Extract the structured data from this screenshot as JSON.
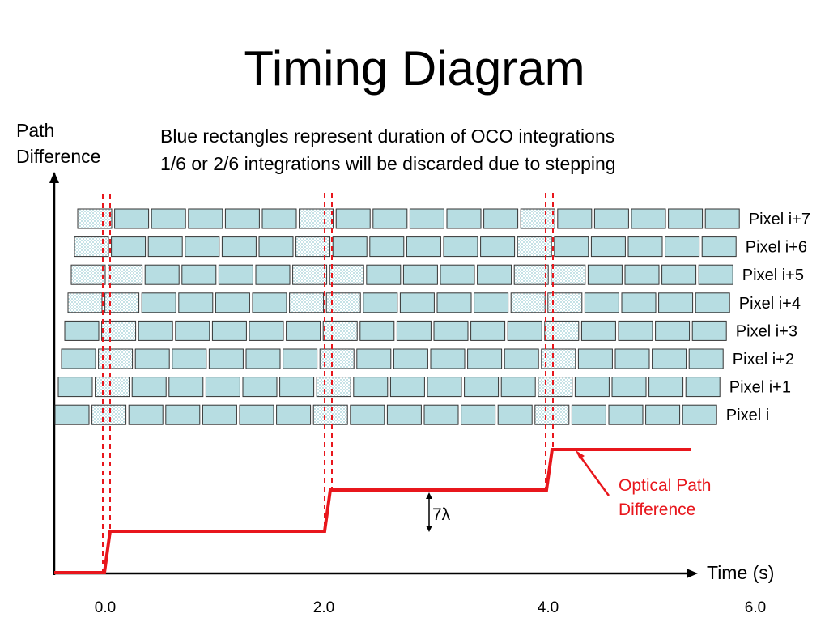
{
  "title": "Timing Diagram",
  "y_axis_label": [
    "Path",
    "Difference"
  ],
  "x_axis_label": "Time (s)",
  "notes": [
    "Blue rectangles represent duration of OCO integrations",
    "1/6 or 2/6 integrations will be discarded due to stepping"
  ],
  "x_ticks": [
    "0.0",
    "2.0",
    "4.0",
    "6.0"
  ],
  "step_height_label": "7λ",
  "opd_label": [
    "Optical Path",
    "Difference"
  ],
  "pixels": [
    {
      "label": "Pixel i+7"
    },
    {
      "label": "Pixel i+6"
    },
    {
      "label": "Pixel i+5"
    },
    {
      "label": "Pixel i+4"
    },
    {
      "label": "Pixel i+3"
    },
    {
      "label": "Pixel i+2"
    },
    {
      "label": "Pixel i+1"
    },
    {
      "label": "Pixel i"
    }
  ],
  "colors": {
    "integration_fill": "#b7dde2",
    "integration_stroke": "#333333",
    "discarded_hatch": "#c5e2e6",
    "opd_line": "#e8161c",
    "step_marker": "#e8161c",
    "axis": "#000000"
  }
}
